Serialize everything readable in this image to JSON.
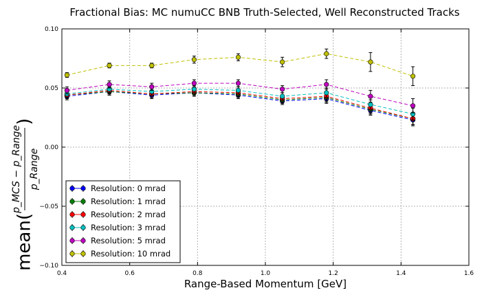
{
  "chart_data": {
    "type": "scatter",
    "title": "Fractional Bias: MC numuCC BNB Truth-Selected, Well Reconstructed Tracks",
    "xlabel": "Range-Based Momentum [GeV]",
    "ylabel_prefix": "mean(",
    "ylabel_suffix": ")",
    "ylabel_num": "p_MCS − p_Range",
    "ylabel_den": "p_Range",
    "xlim": [
      0.4,
      1.6
    ],
    "ylim": [
      -0.1,
      0.1
    ],
    "xticks": [
      0.4,
      0.6,
      0.8,
      1.0,
      1.2,
      1.4,
      1.6
    ],
    "xtick_labels": [
      "0.4",
      "0.6",
      "0.8",
      "1.0",
      "1.2",
      "1.4",
      "1.6"
    ],
    "yticks": [
      -0.1,
      -0.05,
      0.0,
      0.05,
      0.1
    ],
    "ytick_labels": [
      "−0.10",
      "−0.05",
      "0.00",
      "0.05",
      "0.10"
    ],
    "grid": true,
    "legend_position": "lower-left",
    "x": [
      0.415,
      0.54,
      0.665,
      0.79,
      0.92,
      1.05,
      1.18,
      1.31,
      1.435
    ],
    "series": [
      {
        "name": "Resolution: 0 mrad",
        "color": "#0000ff",
        "values": [
          0.043,
          0.047,
          0.044,
          0.046,
          0.044,
          0.039,
          0.041,
          0.031,
          0.023
        ],
        "errors": [
          0.003,
          0.003,
          0.003,
          0.003,
          0.003,
          0.003,
          0.004,
          0.004,
          0.005
        ]
      },
      {
        "name": "Resolution: 1 mrad",
        "color": "#008000",
        "values": [
          0.044,
          0.047,
          0.045,
          0.046,
          0.045,
          0.04,
          0.042,
          0.032,
          0.024
        ],
        "errors": [
          0.003,
          0.003,
          0.003,
          0.003,
          0.003,
          0.003,
          0.004,
          0.004,
          0.005
        ]
      },
      {
        "name": "Resolution: 2 mrad",
        "color": "#ff0000",
        "values": [
          0.044,
          0.048,
          0.045,
          0.047,
          0.046,
          0.041,
          0.043,
          0.033,
          0.024
        ],
        "errors": [
          0.003,
          0.003,
          0.003,
          0.003,
          0.003,
          0.003,
          0.004,
          0.004,
          0.005
        ]
      },
      {
        "name": "Resolution: 3 mrad",
        "color": "#00bfbf",
        "values": [
          0.045,
          0.049,
          0.047,
          0.049,
          0.048,
          0.043,
          0.046,
          0.036,
          0.028
        ],
        "errors": [
          0.003,
          0.003,
          0.003,
          0.003,
          0.003,
          0.003,
          0.004,
          0.004,
          0.005
        ]
      },
      {
        "name": "Resolution: 5 mrad",
        "color": "#bf00bf",
        "values": [
          0.048,
          0.053,
          0.051,
          0.054,
          0.054,
          0.049,
          0.053,
          0.043,
          0.035
        ],
        "errors": [
          0.003,
          0.003,
          0.003,
          0.003,
          0.003,
          0.003,
          0.004,
          0.005,
          0.006
        ]
      },
      {
        "name": "Resolution: 10 mrad",
        "color": "#bfbf00",
        "values": [
          0.061,
          0.069,
          0.069,
          0.074,
          0.076,
          0.072,
          0.079,
          0.072,
          0.06
        ],
        "errors": [
          0.002,
          0.002,
          0.002,
          0.003,
          0.003,
          0.004,
          0.004,
          0.008,
          0.008
        ]
      }
    ]
  }
}
